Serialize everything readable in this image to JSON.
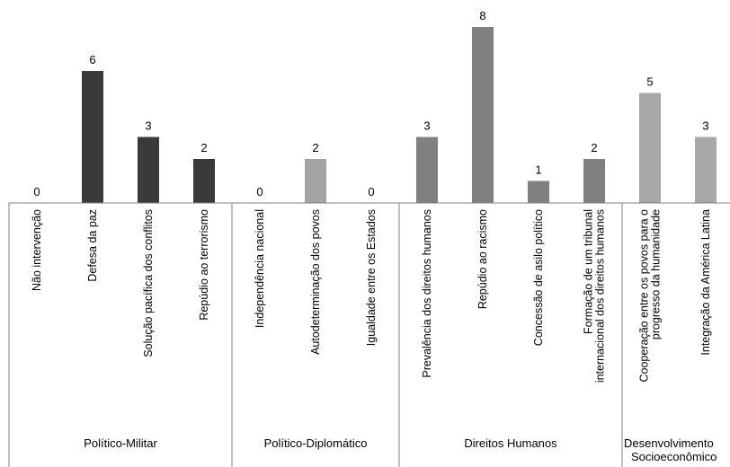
{
  "chart_data": {
    "type": "bar",
    "title": "",
    "xlabel": "",
    "ylabel": "",
    "ylim": [
      0,
      8.5
    ],
    "grid": false,
    "legend": "none",
    "show_data_labels": true,
    "categories": [
      {
        "lines": [
          "Não intervenção"
        ],
        "value": 0,
        "group": 0
      },
      {
        "lines": [
          "Defesa da paz"
        ],
        "value": 6,
        "group": 0
      },
      {
        "lines": [
          "Solução pacífica dos conflitos"
        ],
        "value": 3,
        "group": 0
      },
      {
        "lines": [
          "Repúdio ao terrorismo"
        ],
        "value": 2,
        "group": 0
      },
      {
        "lines": [
          "Independência nacional"
        ],
        "value": 0,
        "group": 1
      },
      {
        "lines": [
          "Autodeterminação dos povos"
        ],
        "value": 2,
        "group": 1
      },
      {
        "lines": [
          "Igualdade entre os Estados"
        ],
        "value": 0,
        "group": 1
      },
      {
        "lines": [
          "Prevalência dos direitos humanos"
        ],
        "value": 3,
        "group": 2
      },
      {
        "lines": [
          "Repúdio ao racismo"
        ],
        "value": 8,
        "group": 2
      },
      {
        "lines": [
          "Concessão de asilo político"
        ],
        "value": 1,
        "group": 2
      },
      {
        "lines": [
          "Formação de um tribunal",
          "internacional dos direitos humanos"
        ],
        "value": 2,
        "group": 2
      },
      {
        "lines": [
          "Cooperação entre os povos para o",
          "progresso da humanidade"
        ],
        "value": 5,
        "group": 3
      },
      {
        "lines": [
          "Integração da América Latina"
        ],
        "value": 3,
        "group": 3
      }
    ],
    "groups": [
      {
        "lines": [
          "Político-Militar"
        ],
        "color": "#3a3a3a"
      },
      {
        "lines": [
          "Político-Diplomático"
        ],
        "color": "#a3a3a3"
      },
      {
        "lines": [
          "Direitos Humanos"
        ],
        "color": "#808080"
      },
      {
        "lines": [
          "Desenvolvimento",
          "Socioeconômico"
        ],
        "color": "#a8a8a8"
      }
    ]
  }
}
